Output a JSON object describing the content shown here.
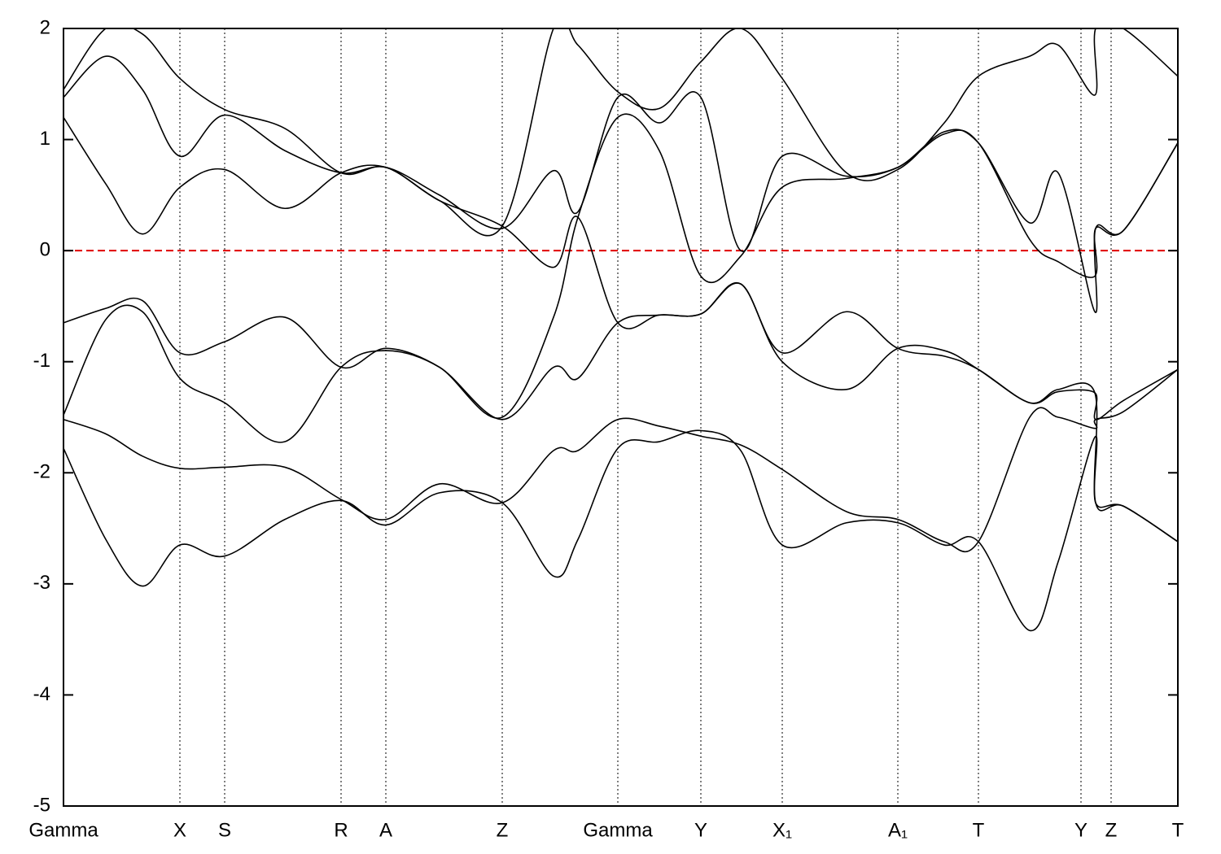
{
  "chart_data": {
    "type": "line",
    "x": [
      0,
      0.52,
      0.97,
      1.43,
      1.98,
      2.72,
      3.41,
      3.96,
      4.62,
      5.39,
      6.02,
      6.32,
      6.81,
      7.32,
      7.83,
      8.32,
      8.83,
      9.62,
      10.25,
      10.82,
      11.24,
      11.87,
      12.22,
      12.67,
      12.68,
      13.02,
      13.69
    ],
    "series": [
      {
        "color": "#000000",
        "values": [
          -1.78,
          -2.6,
          -3.02,
          -2.65,
          -2.75,
          -2.42,
          -2.25,
          -2.47,
          -2.18,
          -2.27,
          -2.93,
          -2.6,
          -1.78,
          -1.72,
          -1.62,
          -1.8,
          -2.65,
          -2.45,
          -2.45,
          -2.65,
          -2.62,
          -3.42,
          -2.8,
          -1.68,
          -2.27,
          -2.3,
          -2.62
        ]
      },
      {
        "color": "#000000",
        "values": [
          -1.52,
          -1.65,
          -1.85,
          -1.96,
          -1.95,
          -1.95,
          -2.24,
          -2.42,
          -2.1,
          -2.27,
          -1.8,
          -1.8,
          -1.52,
          -1.58,
          -1.67,
          -1.75,
          -1.97,
          -2.35,
          -2.42,
          -2.62,
          -2.62,
          -1.5,
          -1.5,
          -1.6,
          -1.52,
          -1.45,
          -1.07
        ]
      },
      {
        "color": "#000000",
        "values": [
          -1.48,
          -0.62,
          -0.55,
          -1.15,
          -1.37,
          -1.72,
          -1.05,
          -0.9,
          -1.05,
          -1.52,
          -1.05,
          -1.15,
          -0.65,
          -0.58,
          -0.57,
          -0.3,
          -1.0,
          -1.25,
          -0.88,
          -0.9,
          -1.07,
          -1.37,
          -1.27,
          -1.28,
          -1.52,
          -1.35,
          -1.07
        ]
      },
      {
        "color": "#000000",
        "values": [
          -0.65,
          -0.52,
          -0.45,
          -0.92,
          -0.82,
          -0.6,
          -1.05,
          -0.88,
          -1.05,
          -1.5,
          -0.6,
          0.3,
          1.2,
          0.9,
          -0.23,
          -0.05,
          0.57,
          0.65,
          0.75,
          1.05,
          0.97,
          0.1,
          -0.1,
          -0.23,
          0.2,
          0.18,
          0.97
        ]
      },
      {
        "color": "#000000",
        "values": [
          1.2,
          0.6,
          0.15,
          0.57,
          0.73,
          0.38,
          0.7,
          0.75,
          0.45,
          0.22,
          -0.15,
          0.3,
          -0.65,
          -0.58,
          -0.57,
          -0.3,
          -0.92,
          -0.55,
          -0.88,
          -0.95,
          -1.07,
          -1.37,
          -1.25,
          -1.28,
          -2.27,
          -2.3,
          -2.62
        ]
      },
      {
        "color": "#000000",
        "values": [
          1.38,
          1.75,
          1.45,
          0.85,
          1.22,
          0.9,
          0.7,
          0.75,
          0.5,
          0.2,
          0.72,
          0.35,
          1.38,
          1.15,
          1.38,
          0.0,
          0.85,
          0.67,
          0.75,
          1.07,
          0.97,
          0.25,
          0.7,
          -0.55,
          0.2,
          0.18,
          0.97
        ]
      },
      {
        "color": "#000000",
        "values": [
          1.45,
          2.0,
          1.95,
          1.55,
          1.27,
          1.1,
          0.7,
          0.75,
          0.45,
          0.22,
          2.0,
          1.85,
          1.43,
          1.28,
          1.7,
          2.0,
          1.55,
          0.7,
          0.73,
          1.15,
          1.57,
          1.75,
          1.85,
          1.4,
          2.0,
          2.0,
          1.57
        ]
      }
    ],
    "reference_line": {
      "value": 0,
      "color": "#e00000"
    },
    "xlim": [
      0,
      13.69
    ],
    "ylim": [
      -5,
      2
    ],
    "yticks": [
      2,
      1,
      0,
      -1,
      -2,
      -3,
      -4,
      -5
    ],
    "xticks": [
      {
        "value": 0,
        "label": "Gamma"
      },
      {
        "value": 1.43,
        "label": "X"
      },
      {
        "value": 1.98,
        "label": "S"
      },
      {
        "value": 3.41,
        "label": "R"
      },
      {
        "value": 3.96,
        "label": "A"
      },
      {
        "value": 5.39,
        "label": "Z"
      },
      {
        "value": 6.81,
        "label": "Gamma"
      },
      {
        "value": 7.83,
        "label": "Y"
      },
      {
        "value": 8.83,
        "label": "X₁"
      },
      {
        "value": 10.25,
        "label": "A₁"
      },
      {
        "value": 11.24,
        "label": "T"
      },
      {
        "value": 12.5,
        "label": "Y"
      },
      {
        "value": 12.87,
        "label": "Z"
      },
      {
        "value": 13.69,
        "label": "T"
      }
    ]
  }
}
